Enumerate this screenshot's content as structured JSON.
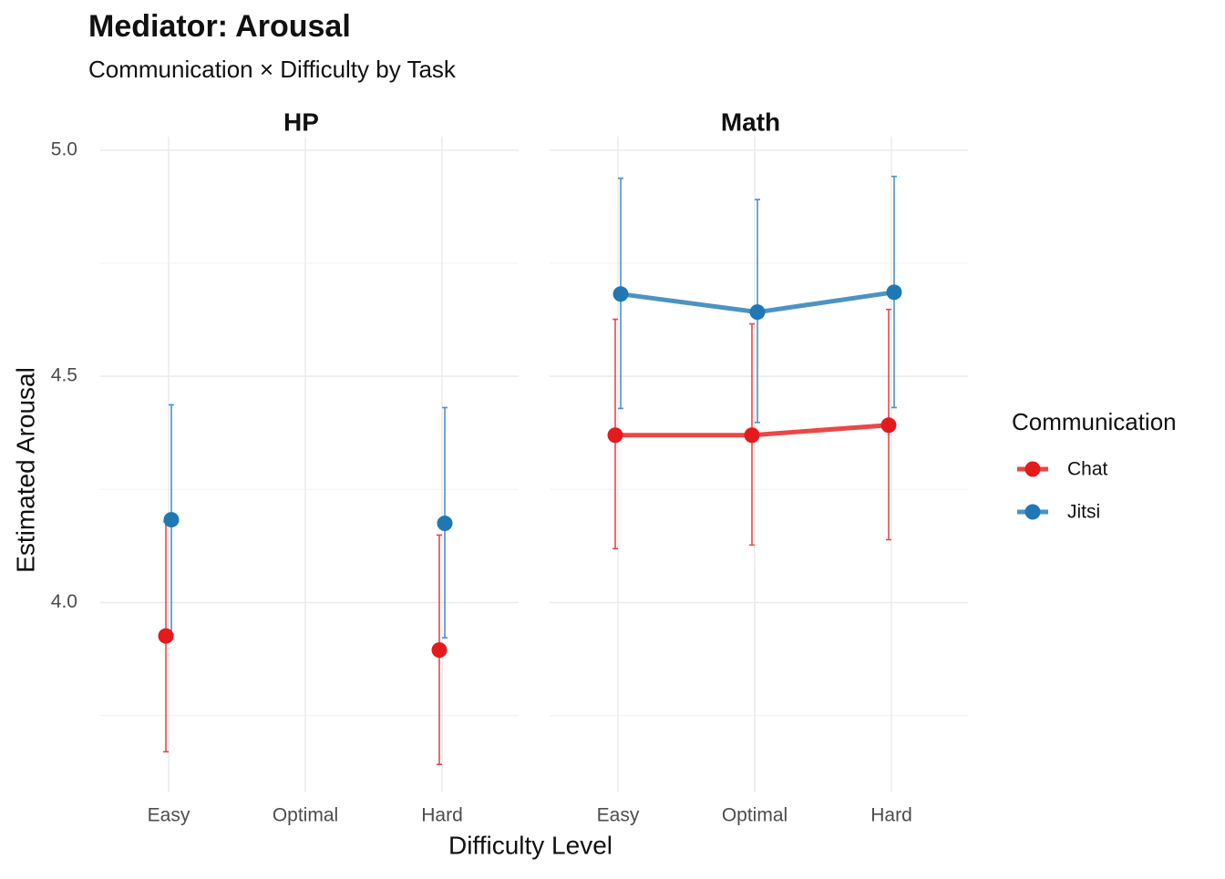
{
  "chart_data": {
    "type": "line",
    "title": "Mediator: Arousal",
    "subtitle": "Communication × Difficulty by Task",
    "xlabel": "Difficulty Level",
    "ylabel": "Estimated Arousal",
    "legend_title": "Communication",
    "legend_position": "right",
    "facets": [
      "HP",
      "Math"
    ],
    "categories": [
      "Easy",
      "Optimal",
      "Hard"
    ],
    "ylim": [
      3.58,
      5.03
    ],
    "yticks": [
      {
        "value": 4.0,
        "label": "4.0"
      },
      {
        "value": 4.5,
        "label": "4.5"
      },
      {
        "value": 5.0,
        "label": "5.0"
      }
    ],
    "yminor": [
      3.75,
      4.25,
      4.75
    ],
    "grid": true,
    "series": [
      {
        "name": "Chat",
        "color": "#e41a1c",
        "values": [
          [
            3.926,
            null,
            3.895
          ],
          [
            4.37,
            4.37,
            4.392
          ]
        ],
        "lower": [
          [
            3.67,
            null,
            3.642
          ],
          [
            4.119,
            4.127,
            4.139
          ]
        ],
        "upper": [
          [
            4.179,
            null,
            4.149
          ],
          [
            4.626,
            4.616,
            4.648
          ]
        ]
      },
      {
        "name": "Jitsi",
        "color": "#1f78b4",
        "values": [
          [
            4.183,
            null,
            4.175
          ],
          [
            4.682,
            4.642,
            4.686
          ]
        ],
        "lower": [
          [
            3.93,
            null,
            3.922
          ],
          [
            4.429,
            4.398,
            4.431
          ]
        ],
        "upper": [
          [
            4.437,
            null,
            4.431
          ],
          [
            4.938,
            4.891,
            4.942
          ]
        ]
      }
    ]
  }
}
